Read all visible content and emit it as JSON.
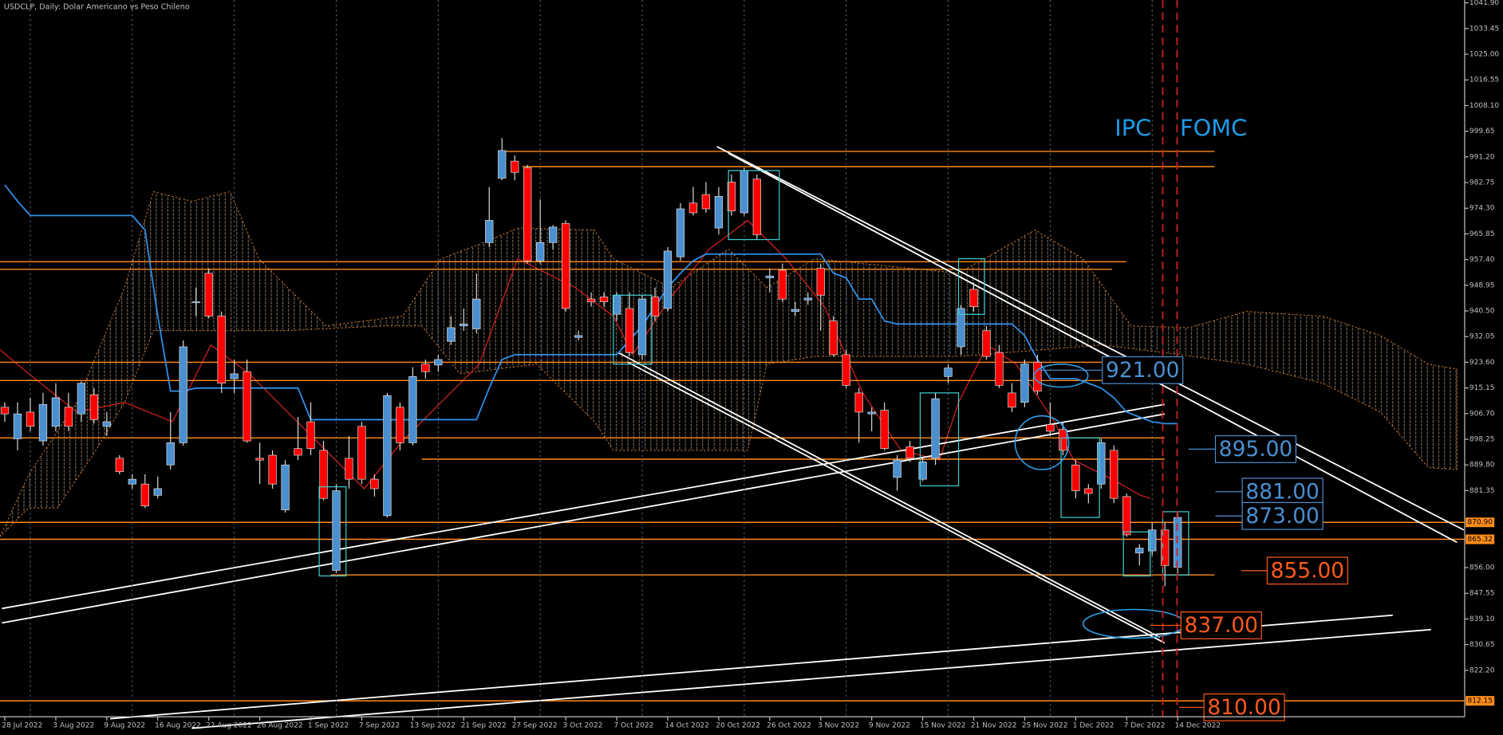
{
  "chart_data": {
    "type": "candlestick",
    "title": "USDCLP, Daily:  Dolar Americano vs Peso Chileno",
    "categories": [
      "28 Jul 2022",
      null,
      null,
      null,
      "3 Aug 2022",
      null,
      null,
      null,
      "9 Aug 2022",
      null,
      null,
      null,
      "16 Aug 2022",
      null,
      null,
      null,
      "22 Aug 2022",
      null,
      null,
      null,
      "26 Aug 2022",
      null,
      null,
      null,
      "1 Sep 2022",
      null,
      null,
      null,
      "7 Sep 2022",
      null,
      null,
      null,
      "13 Sep 2022",
      null,
      null,
      null,
      "21 Sep 2022",
      null,
      null,
      null,
      "27 Sep 2022",
      null,
      null,
      null,
      "3 Oct 2022",
      null,
      null,
      null,
      "7 Oct 2022",
      null,
      null,
      null,
      "14 Oct 2022",
      null,
      null,
      null,
      "20 Oct 2022",
      null,
      null,
      null,
      "26 Oct 2022",
      null,
      null,
      null,
      "3 Nov 2022",
      null,
      null,
      null,
      "9 Nov 2022",
      null,
      null,
      null,
      "15 Nov 2022",
      null,
      null,
      null,
      "21 Nov 2022",
      null,
      null,
      null,
      "25 Nov 2022",
      null,
      null,
      null,
      "1 Dec 2022",
      null,
      null,
      null,
      "7 Dec 2022",
      null,
      null,
      null,
      "14 Dec 2022"
    ],
    "open": [
      908.8,
      898.4,
      907.2,
      897.7,
      902.5,
      908.8,
      906.6,
      912.9,
      902.5,
      892.0,
      883.5,
      883.5,
      879.8,
      889.8,
      897.1,
      943.2,
      952.9,
      938.8,
      918.2,
      920.5,
      892.0,
      893.0,
      875.0,
      895.2,
      904.0,
      894.6,
      855.1,
      892.0,
      902.5,
      885.1,
      873.1,
      908.8,
      897.1,
      923.0,
      922.7,
      930.5,
      935.6,
      934.6,
      963.0,
      984.2,
      989.8,
      987.6,
      957.0,
      963.0,
      969.3,
      931.8,
      944.4,
      945.1,
      939.4,
      941.3,
      926.1,
      945.1,
      941.3,
      958.3,
      976.0,
      978.8,
      967.8,
      982.9,
      972.8,
      983.9,
      951.4,
      953.9,
      940.3,
      944.1,
      954.5,
      937.2,
      926.1,
      913.5,
      906.6,
      907.8,
      885.7,
      895.8,
      885.1,
      892.0,
      918.9,
      928.7,
      947.6,
      934.0,
      926.8,
      913.5,
      910.4,
      923.6,
      903.1,
      901.5,
      889.8,
      882.0,
      883.5,
      894.6,
      879.4,
      860.8,
      861.5,
      868.4,
      856.1
    ],
    "high": [
      910.4,
      910.4,
      911.9,
      913.5,
      916.7,
      913.5,
      917.3,
      915.1,
      907.2,
      893.0,
      886.7,
      886.7,
      886.0,
      907.2,
      930.8,
      948.2,
      954.5,
      940.3,
      924.5,
      924.5,
      897.1,
      894.6,
      891.4,
      905.6,
      910.4,
      897.7,
      883.5,
      899.3,
      904.0,
      886.7,
      913.5,
      910.4,
      922.0,
      924.5,
      926.1,
      938.8,
      941.3,
      952.9,
      981.3,
      997.4,
      991.7,
      988.6,
      977.2,
      968.7,
      970.3,
      934.0,
      946.6,
      946.6,
      946.6,
      946.6,
      945.7,
      948.2,
      961.5,
      976.0,
      981.3,
      982.9,
      981.3,
      985.4,
      987.6,
      985.4,
      954.5,
      956.1,
      943.5,
      946.6,
      956.1,
      938.8,
      927.7,
      915.1,
      908.8,
      910.4,
      893.0,
      897.7,
      892.0,
      913.5,
      923.0,
      942.5,
      949.8,
      935.6,
      929.3,
      916.7,
      924.5,
      926.1,
      910.4,
      904.0,
      891.4,
      883.5,
      898.4,
      896.2,
      880.4,
      863.7,
      870.9,
      870.9,
      874.1
    ],
    "low": [
      904.0,
      894.6,
      900.9,
      896.2,
      900.9,
      900.9,
      904.0,
      903.4,
      899.3,
      886.7,
      882.0,
      875.6,
      878.8,
      888.3,
      896.2,
      938.8,
      938.1,
      913.5,
      913.5,
      897.1,
      883.5,
      882.0,
      874.1,
      891.4,
      893.0,
      878.2,
      854.2,
      882.0,
      883.5,
      879.4,
      872.5,
      894.6,
      896.2,
      918.2,
      920.5,
      929.3,
      934.0,
      933.1,
      961.5,
      983.5,
      983.5,
      956.1,
      956.1,
      960.8,
      940.3,
      930.8,
      941.9,
      941.9,
      937.2,
      925.5,
      924.5,
      937.2,
      940.3,
      957.0,
      971.9,
      972.8,
      965.6,
      971.9,
      971.9,
      964.0,
      946.6,
      943.5,
      938.8,
      942.5,
      934.0,
      925.5,
      915.1,
      897.1,
      900.9,
      894.6,
      881.3,
      890.8,
      884.5,
      889.8,
      916.7,
      926.1,
      940.3,
      924.5,
      915.1,
      907.2,
      908.8,
      912.9,
      899.3,
      893.0,
      878.8,
      877.2,
      882.0,
      877.2,
      866.2,
      856.7,
      859.9,
      849.8,
      854.2
    ],
    "close": [
      906.6,
      906.6,
      902.5,
      909.7,
      911.9,
      902.5,
      916.7,
      904.7,
      904.0,
      887.6,
      885.1,
      876.3,
      882.0,
      897.1,
      928.7,
      943.5,
      938.8,
      916.7,
      919.8,
      897.7,
      891.4,
      883.5,
      889.8,
      893.0,
      895.2,
      878.8,
      881.3,
      885.1,
      885.1,
      882.0,
      912.6,
      897.1,
      918.9,
      920.5,
      924.5,
      935.0,
      936.2,
      944.4,
      970.3,
      993.3,
      986.1,
      957.0,
      963.0,
      968.1,
      941.3,
      932.4,
      943.5,
      943.5,
      945.7,
      926.8,
      944.4,
      938.8,
      960.2,
      974.1,
      972.8,
      974.1,
      978.2,
      973.4,
      986.7,
      965.6,
      952.0,
      944.4,
      941.0,
      944.7,
      945.7,
      926.1,
      916.0,
      907.2,
      907.2,
      895.2,
      891.4,
      892.0,
      890.8,
      911.6,
      921.7,
      941.3,
      941.9,
      925.5,
      916.0,
      908.8,
      923.0,
      914.1,
      900.9,
      894.6,
      881.3,
      880.4,
      897.1,
      878.8,
      866.8,
      862.4,
      868.4,
      856.7,
      872.5
    ],
    "up_color": "#4a8fd0",
    "down_color": "#ff0000",
    "kijun": {
      "color": "#2f8fe8",
      "values": [
        982.0,
        976.6,
        971.9,
        971.9,
        971.9,
        971.9,
        971.9,
        971.9,
        971.9,
        971.9,
        971.9,
        967.1,
        938.8,
        914.1,
        914.1,
        915.1,
        915.1,
        915.1,
        915.1,
        915.1,
        915.1,
        915.1,
        915.1,
        915.1,
        904.7,
        904.7,
        904.7,
        904.7,
        904.7,
        904.7,
        904.7,
        904.7,
        904.7,
        904.7,
        904.7,
        904.7,
        904.7,
        904.7,
        915.1,
        924.5,
        926.1,
        926.1,
        926.1,
        926.1,
        926.1,
        926.1,
        926.1,
        926.1,
        926.1,
        930.8,
        935.6,
        941.9,
        948.2,
        952.9,
        957.0,
        959.2,
        959.2,
        959.2,
        959.2,
        959.2,
        959.2,
        959.2,
        959.2,
        959.2,
        959.2,
        952.9,
        951.4,
        944.4,
        944.4,
        937.2,
        936.2,
        936.2,
        936.2,
        936.2,
        936.2,
        936.2,
        936.2,
        936.2,
        936.2,
        936.2,
        932.4,
        924.5,
        918.2,
        918.2,
        918.2,
        916.7,
        915.1,
        911.9,
        907.2,
        905.6,
        904.0,
        903.4,
        903.4
      ]
    },
    "levels": {
      "color": "#ff8c1a",
      "values": [
        993.0,
        988.0,
        956.7,
        954.2,
        923.6,
        917.6,
        898.7,
        891.7,
        870.9,
        865.32,
        853.6,
        812.15
      ],
      "value_labels": [
        null,
        null,
        null,
        null,
        null,
        null,
        null,
        null,
        "870.90",
        "865.32",
        null,
        "812.15"
      ]
    },
    "price_boxes": [
      {
        "value": 921,
        "label": "921.00",
        "color": "#4a8fd0"
      },
      {
        "value": 895,
        "label": "895.00",
        "color": "#4a8fd0"
      },
      {
        "value": 881,
        "label": "881.00",
        "color": "#4a8fd0"
      },
      {
        "value": 873,
        "label": "873.00",
        "color": "#4a8fd0"
      },
      {
        "value": 855,
        "label": "855.00",
        "color": "#ff5a1a"
      },
      {
        "value": 837,
        "label": "837.00",
        "color": "#ff5a1a"
      },
      {
        "value": 810,
        "label": "810.00",
        "color": "#ff5a1a"
      }
    ],
    "event_labels": [
      "IPC",
      "FOMC"
    ],
    "ylim": [
      800.9,
      1042.85
    ],
    "yticks": [
      {
        "value": 1041.9,
        "label": "1041.90"
      },
      {
        "value": 1033.45,
        "label": "1033.45"
      },
      {
        "value": 1025,
        "label": "1025.00"
      },
      {
        "value": 1016.55,
        "label": "1016.55"
      },
      {
        "value": 1008.1,
        "label": "1008.10"
      },
      {
        "value": 999.65,
        "label": "999.65"
      },
      {
        "value": 991.2,
        "label": "991.20"
      },
      {
        "value": 982.75,
        "label": "982.75"
      },
      {
        "value": 974.3,
        "label": "974.30"
      },
      {
        "value": 965.85,
        "label": "965.85"
      },
      {
        "value": 957.4,
        "label": "957.40"
      },
      {
        "value": 948.95,
        "label": "948.95"
      },
      {
        "value": 940.5,
        "label": "940.50"
      },
      {
        "value": 932.05,
        "label": "932.05"
      },
      {
        "value": 923.6,
        "label": "923.60"
      },
      {
        "value": 915.15,
        "label": "915.15"
      },
      {
        "value": 906.7,
        "label": "906.70"
      },
      {
        "value": 898.25,
        "label": "898.25"
      },
      {
        "value": 889.8,
        "label": "889.80"
      },
      {
        "value": 881.35,
        "label": "881.35"
      },
      {
        "value": 856,
        "label": "856.00"
      },
      {
        "value": 847.55,
        "label": "847.55"
      },
      {
        "value": 839.1,
        "label": "839.10"
      },
      {
        "value": 830.65,
        "label": "830.65"
      },
      {
        "value": 822.2,
        "label": "822.20"
      }
    ]
  }
}
